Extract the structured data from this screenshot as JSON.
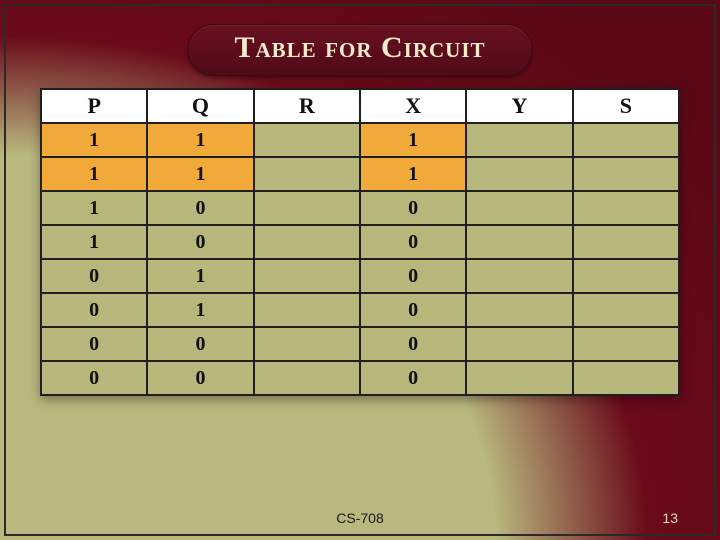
{
  "title": "Table for Circuit",
  "course_code": "CS-708",
  "page_number": "13",
  "table": {
    "columns": [
      "P",
      "Q",
      "R",
      "X",
      "Y",
      "S"
    ],
    "highlight_color": "#f1a93a",
    "header_bg": "#ffffff",
    "cell_bg": "#b8b77b",
    "border_color": "#1f1f1f",
    "rows": [
      {
        "cells": [
          {
            "v": "1",
            "hl": true
          },
          {
            "v": "1",
            "hl": true
          },
          {
            "v": "",
            "hl": false
          },
          {
            "v": "1",
            "hl": true
          },
          {
            "v": "",
            "hl": false
          },
          {
            "v": "",
            "hl": false
          }
        ]
      },
      {
        "cells": [
          {
            "v": "1",
            "hl": true
          },
          {
            "v": "1",
            "hl": true
          },
          {
            "v": "",
            "hl": false
          },
          {
            "v": "1",
            "hl": true
          },
          {
            "v": "",
            "hl": false
          },
          {
            "v": "",
            "hl": false
          }
        ]
      },
      {
        "cells": [
          {
            "v": "1",
            "hl": false
          },
          {
            "v": "0",
            "hl": false
          },
          {
            "v": "",
            "hl": false
          },
          {
            "v": "0",
            "hl": false
          },
          {
            "v": "",
            "hl": false
          },
          {
            "v": "",
            "hl": false
          }
        ]
      },
      {
        "cells": [
          {
            "v": "1",
            "hl": false
          },
          {
            "v": "0",
            "hl": false
          },
          {
            "v": "",
            "hl": false
          },
          {
            "v": "0",
            "hl": false
          },
          {
            "v": "",
            "hl": false
          },
          {
            "v": "",
            "hl": false
          }
        ]
      },
      {
        "cells": [
          {
            "v": "0",
            "hl": false
          },
          {
            "v": "1",
            "hl": false
          },
          {
            "v": "",
            "hl": false
          },
          {
            "v": "0",
            "hl": false
          },
          {
            "v": "",
            "hl": false
          },
          {
            "v": "",
            "hl": false
          }
        ]
      },
      {
        "cells": [
          {
            "v": "0",
            "hl": false
          },
          {
            "v": "1",
            "hl": false
          },
          {
            "v": "",
            "hl": false
          },
          {
            "v": "0",
            "hl": false
          },
          {
            "v": "",
            "hl": false
          },
          {
            "v": "",
            "hl": false
          }
        ]
      },
      {
        "cells": [
          {
            "v": "0",
            "hl": false
          },
          {
            "v": "0",
            "hl": false
          },
          {
            "v": "",
            "hl": false
          },
          {
            "v": "0",
            "hl": false
          },
          {
            "v": "",
            "hl": false
          },
          {
            "v": "",
            "hl": false
          }
        ]
      },
      {
        "cells": [
          {
            "v": "0",
            "hl": false
          },
          {
            "v": "0",
            "hl": false
          },
          {
            "v": "",
            "hl": false
          },
          {
            "v": "0",
            "hl": false
          },
          {
            "v": "",
            "hl": false
          },
          {
            "v": "",
            "hl": false
          }
        ]
      }
    ]
  },
  "colors": {
    "bg_olive": "#b9b87e",
    "bg_maroon": "#6a0a1a",
    "title_text": "#f6eccb"
  }
}
